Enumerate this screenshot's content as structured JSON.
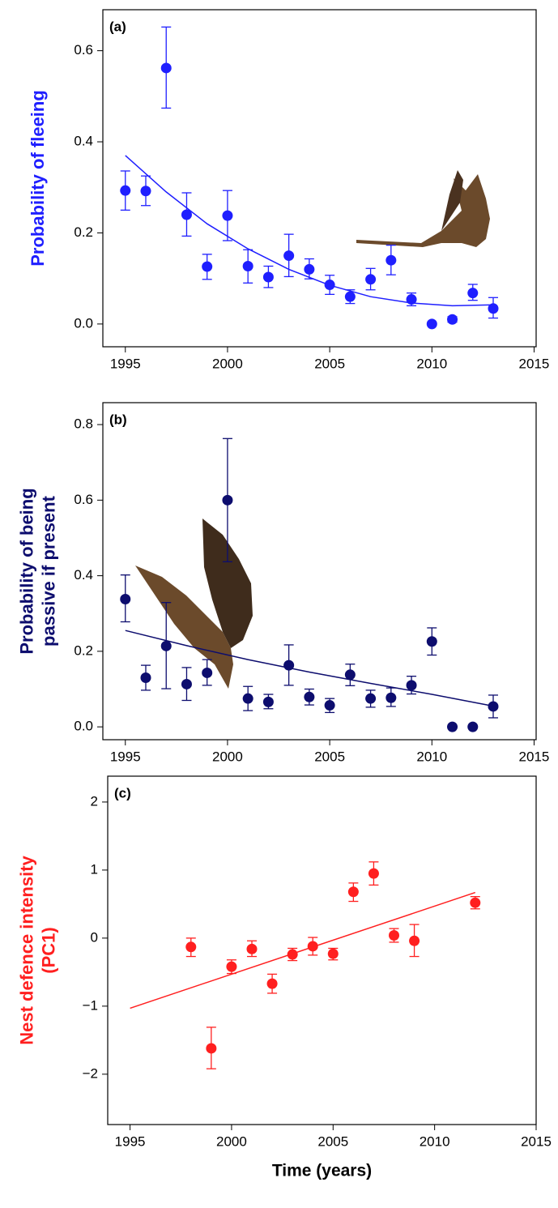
{
  "chart_data": [
    {
      "type": "scatter",
      "panel_label": "(a)",
      "ylabel": [
        "Probability of fleeing"
      ],
      "color": "#1f1fff",
      "x": [
        1995,
        1996,
        1997,
        1998,
        1999,
        2000,
        2001,
        2002,
        2003,
        2004,
        2005,
        2006,
        2007,
        2008,
        2009,
        2010,
        2011,
        2012,
        2013
      ],
      "values": [
        0.293,
        0.292,
        0.562,
        0.24,
        0.126,
        0.238,
        0.127,
        0.103,
        0.15,
        0.12,
        0.086,
        0.06,
        0.098,
        0.14,
        0.054,
        0.0,
        0.01,
        0.068,
        0.034
      ],
      "lower": [
        0.25,
        0.26,
        0.474,
        0.193,
        0.098,
        0.183,
        0.09,
        0.08,
        0.104,
        0.099,
        0.065,
        0.045,
        0.075,
        0.108,
        0.04,
        0.0,
        0.004,
        0.052,
        0.013
      ],
      "upper": [
        0.336,
        0.325,
        0.652,
        0.288,
        0.153,
        0.293,
        0.163,
        0.127,
        0.197,
        0.143,
        0.107,
        0.075,
        0.122,
        0.173,
        0.068,
        0.0,
        0.016,
        0.087,
        0.058
      ],
      "fit": {
        "x": [
          1995,
          1997,
          1999,
          2001,
          2003,
          2005,
          2007,
          2009,
          2011,
          2013
        ],
        "values": [
          0.37,
          0.29,
          0.22,
          0.165,
          0.12,
          0.085,
          0.06,
          0.046,
          0.04,
          0.042
        ]
      },
      "xlim": [
        1993.9,
        2015.1
      ],
      "xticks": [
        1995,
        2000,
        2005,
        2010,
        2015
      ],
      "ylim": [
        -0.05,
        0.69
      ],
      "yticks": [
        {
          "value": 0,
          "label": "0.0"
        },
        0.2,
        0.4,
        0.6
      ]
    },
    {
      "type": "scatter",
      "panel_label": "(b)",
      "ylabel": [
        "Probability of being",
        "passive if present"
      ],
      "color": "#0d0d6e",
      "x": [
        1995,
        1996,
        1997,
        1998,
        1999,
        2000,
        2001,
        2002,
        2003,
        2004,
        2005,
        2006,
        2007,
        2008,
        2009,
        2010,
        2011,
        2012,
        2013
      ],
      "values": [
        0.338,
        0.13,
        0.214,
        0.113,
        0.143,
        0.6,
        0.075,
        0.066,
        0.163,
        0.079,
        0.057,
        0.138,
        0.075,
        0.077,
        0.11,
        0.226,
        0.0,
        0.0,
        0.054
      ],
      "lower": [
        0.278,
        0.097,
        0.101,
        0.07,
        0.11,
        0.437,
        0.043,
        0.048,
        0.11,
        0.058,
        0.038,
        0.109,
        0.052,
        0.054,
        0.087,
        0.19,
        0.0,
        0.0,
        0.024
      ],
      "upper": [
        0.402,
        0.163,
        0.329,
        0.157,
        0.178,
        0.763,
        0.107,
        0.086,
        0.217,
        0.1,
        0.075,
        0.166,
        0.097,
        0.103,
        0.134,
        0.262,
        0.0,
        0.0,
        0.084
      ],
      "fit": {
        "x": [
          1995,
          1998,
          2001,
          2004,
          2007,
          2010,
          2013
        ],
        "values": [
          0.255,
          0.215,
          0.178,
          0.145,
          0.115,
          0.086,
          0.055
        ]
      },
      "xlim": [
        1993.9,
        2015.1
      ],
      "xticks": [
        1995,
        2000,
        2005,
        2010,
        2015
      ],
      "ylim": [
        -0.034,
        0.858
      ],
      "yticks": [
        {
          "value": 0,
          "label": "0.0"
        },
        0.2,
        0.4,
        0.6,
        0.8
      ]
    },
    {
      "type": "scatter",
      "panel_label": "(c)",
      "ylabel": [
        "Nest defence intensity",
        "(PC1)"
      ],
      "xlabel": "Time (years)",
      "color": "#ff1f1f",
      "x": [
        1998,
        1999,
        2000,
        2001,
        2002,
        2003,
        2004,
        2005,
        2006,
        2007,
        2008,
        2009,
        2012
      ],
      "values": [
        -0.13,
        -1.62,
        -0.42,
        -0.16,
        -0.67,
        -0.24,
        -0.12,
        -0.23,
        0.68,
        0.95,
        0.04,
        -0.04,
        0.52
      ],
      "lower": [
        -0.27,
        -1.92,
        -0.52,
        -0.27,
        -0.81,
        -0.33,
        -0.25,
        -0.32,
        0.54,
        0.78,
        -0.06,
        -0.27,
        0.43
      ],
      "upper": [
        0.0,
        -1.31,
        -0.32,
        -0.04,
        -0.53,
        -0.15,
        0.01,
        -0.15,
        0.81,
        1.12,
        0.14,
        0.2,
        0.61
      ],
      "fit": {
        "x": [
          1995,
          2012
        ],
        "values": [
          -1.03,
          0.67
        ]
      },
      "xlim": [
        1993.9,
        2015.0
      ],
      "xticks": [
        1995,
        2000,
        2005,
        2010,
        2015
      ],
      "ylim": [
        -2.74,
        2.38
      ],
      "yticks": [
        {
          "value": -2,
          "label": "−2"
        },
        {
          "value": -1,
          "label": "−1"
        },
        0,
        1,
        2
      ]
    }
  ]
}
